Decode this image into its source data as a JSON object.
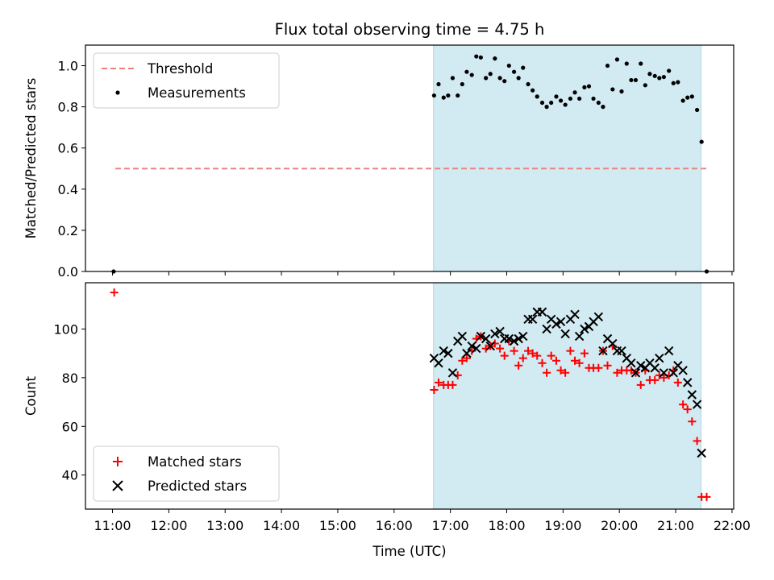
{
  "figure": {
    "title": "Flux total observing time = 4.75 h",
    "xlabel": "Time (UTC)",
    "x_ticks": [
      "11:00",
      "12:00",
      "13:00",
      "14:00",
      "15:00",
      "16:00",
      "17:00",
      "18:00",
      "19:00",
      "20:00",
      "21:00",
      "22:00"
    ],
    "x_tick_hours": [
      11,
      12,
      13,
      14,
      15,
      16,
      17,
      18,
      19,
      20,
      21,
      22
    ],
    "x_range_hours": [
      10.52,
      22.03
    ],
    "shaded_span_hours": [
      16.7,
      21.45
    ],
    "shade_color": "#add8e6"
  },
  "chart_data": [
    {
      "type": "scatter",
      "ylabel": "Matched/Predicted stars",
      "ylim": [
        0,
        1.1
      ],
      "y_ticks": [
        "0.0",
        "0.2",
        "0.4",
        "0.6",
        "0.8",
        "1.0"
      ],
      "y_tick_values": [
        0,
        0.2,
        0.4,
        0.6,
        0.8,
        1.0
      ],
      "legend_position": "upper-left",
      "threshold": {
        "name": "Threshold",
        "value": 0.5,
        "x_range_hours": [
          11.05,
          21.55
        ],
        "color": "#f08080"
      },
      "series": [
        {
          "name": "Measurements",
          "color": "#000000",
          "x": [
            11.02,
            16.71,
            16.79,
            16.88,
            16.96,
            17.04,
            17.13,
            17.21,
            17.29,
            17.38,
            17.46,
            17.54,
            17.63,
            17.71,
            17.79,
            17.88,
            17.96,
            18.04,
            18.13,
            18.21,
            18.29,
            18.38,
            18.46,
            18.54,
            18.63,
            18.71,
            18.79,
            18.88,
            18.96,
            19.04,
            19.13,
            19.21,
            19.29,
            19.38,
            19.46,
            19.54,
            19.63,
            19.71,
            19.79,
            19.88,
            19.96,
            20.04,
            20.13,
            20.21,
            20.29,
            20.38,
            20.46,
            20.54,
            20.63,
            20.71,
            20.79,
            20.88,
            20.96,
            21.04,
            21.13,
            21.21,
            21.29,
            21.38,
            21.46,
            21.55
          ],
          "y": [
            0.0,
            0.855,
            0.91,
            0.845,
            0.855,
            0.94,
            0.855,
            0.91,
            0.97,
            0.955,
            1.045,
            1.04,
            0.94,
            0.96,
            1.035,
            0.94,
            0.925,
            1.0,
            0.97,
            0.94,
            0.99,
            0.91,
            0.88,
            0.85,
            0.82,
            0.8,
            0.82,
            0.85,
            0.83,
            0.81,
            0.84,
            0.87,
            0.84,
            0.895,
            0.9,
            0.84,
            0.82,
            0.8,
            1.0,
            0.885,
            1.03,
            0.875,
            1.01,
            0.93,
            0.93,
            1.01,
            0.905,
            0.96,
            0.95,
            0.94,
            0.945,
            0.975,
            0.915,
            0.92,
            0.83,
            0.845,
            0.85,
            0.785,
            0.63,
            0.0
          ]
        }
      ]
    },
    {
      "type": "scatter",
      "ylabel": "Count",
      "ylim": [
        26,
        119
      ],
      "y_ticks": [
        "40",
        "60",
        "80",
        "100"
      ],
      "y_tick_values": [
        40,
        60,
        80,
        100
      ],
      "legend_position": "lower-left",
      "series": [
        {
          "name": "Matched stars",
          "color": "#ff0000",
          "marker": "plus",
          "x": [
            11.03,
            16.71,
            16.79,
            16.88,
            16.96,
            17.04,
            17.13,
            17.21,
            17.29,
            17.38,
            17.46,
            17.54,
            17.63,
            17.71,
            17.79,
            17.88,
            17.96,
            18.04,
            18.13,
            18.21,
            18.29,
            18.38,
            18.46,
            18.54,
            18.63,
            18.71,
            18.79,
            18.88,
            18.96,
            19.04,
            19.13,
            19.21,
            19.29,
            19.38,
            19.46,
            19.54,
            19.63,
            19.71,
            19.79,
            19.88,
            19.96,
            20.04,
            20.13,
            20.21,
            20.29,
            20.38,
            20.46,
            20.54,
            20.63,
            20.71,
            20.79,
            20.88,
            20.96,
            21.04,
            21.13,
            21.21,
            21.29,
            21.38,
            21.46,
            21.55
          ],
          "y": [
            115,
            75,
            78,
            77,
            77,
            77,
            81,
            87,
            88,
            91,
            96,
            97,
            92,
            93,
            94,
            92,
            89,
            95,
            91,
            85,
            88,
            91,
            90,
            89,
            86,
            82,
            89,
            87,
            83,
            82,
            91,
            87,
            86,
            90,
            84,
            84,
            84,
            91,
            85,
            93,
            82,
            83,
            83,
            83,
            82,
            77,
            83,
            79,
            79,
            81,
            80,
            81,
            83,
            78,
            69,
            67,
            62,
            54,
            31,
            31
          ]
        },
        {
          "name": "Predicted stars",
          "color": "#000000",
          "marker": "x",
          "x": [
            16.71,
            16.79,
            16.88,
            16.96,
            17.04,
            17.13,
            17.21,
            17.29,
            17.38,
            17.46,
            17.54,
            17.63,
            17.71,
            17.79,
            17.88,
            17.96,
            18.04,
            18.13,
            18.21,
            18.29,
            18.38,
            18.46,
            18.54,
            18.63,
            18.71,
            18.79,
            18.88,
            18.96,
            19.04,
            19.13,
            19.21,
            19.29,
            19.38,
            19.46,
            19.54,
            19.63,
            19.71,
            19.79,
            19.88,
            19.96,
            20.04,
            20.13,
            20.21,
            20.29,
            20.38,
            20.46,
            20.54,
            20.63,
            20.71,
            20.79,
            20.88,
            20.96,
            21.04,
            21.13,
            21.21,
            21.29,
            21.38,
            21.46
          ],
          "y": [
            88,
            86,
            91,
            90,
            82,
            95,
            97,
            90,
            93,
            92,
            97,
            96,
            93,
            98,
            99,
            96,
            96,
            95,
            96,
            97,
            104,
            104,
            107,
            107,
            100,
            104,
            102,
            103,
            98,
            104,
            106,
            97,
            100,
            101,
            103,
            105,
            91,
            96,
            94,
            91,
            91,
            88,
            86,
            82,
            85,
            84,
            86,
            84,
            88,
            82,
            91,
            82,
            85,
            83,
            78,
            73,
            69,
            49
          ]
        }
      ]
    }
  ]
}
